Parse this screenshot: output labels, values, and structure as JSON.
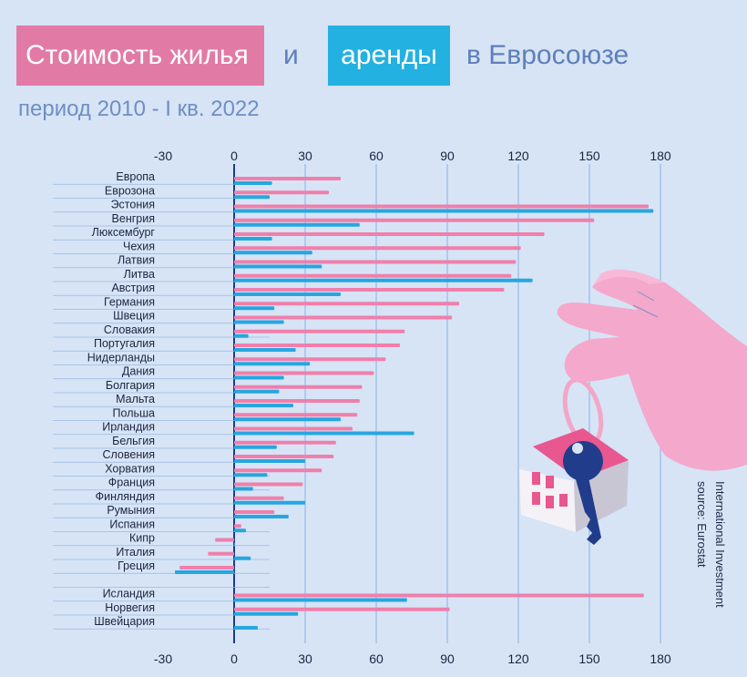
{
  "title": {
    "part1": "Стоимость жилья",
    "and": "и",
    "part2": "аренды",
    "part3": "в Евросоюзе"
  },
  "subtitle": "период 2010 - I кв. 2022",
  "source": {
    "line1": "International Investment",
    "line2": "source: Eurostat"
  },
  "colors": {
    "background": "#d6e4f6",
    "price": "#f07fab",
    "rent": "#27a6e0",
    "title_pink": "#e27aa6",
    "title_blue": "#23b1e2",
    "text_blue": "#5f7fba"
  },
  "chart_data": {
    "type": "bar",
    "orientation": "horizontal",
    "title": "Стоимость жилья и аренды в Евросоюзе",
    "xlim": [
      -30,
      180
    ],
    "xticks": [
      "-30",
      "0",
      "30",
      "60",
      "90",
      "120",
      "150",
      "180"
    ],
    "xlabel": "",
    "ylabel": "",
    "categories": [
      "Европа",
      "Еврозона",
      "Эстония",
      "Венгрия",
      "Люксембург",
      "Чехия",
      "Латвия",
      "Литва",
      "Австрия",
      "Германия",
      "Швеция",
      "Словакия",
      "Португалия",
      "Нидерланды",
      "Дания",
      "Болгария",
      "Мальта",
      "Польша",
      "Ирландия",
      "Бельгия",
      "Словения",
      "Хорватия",
      "Франция",
      "Финляндия",
      "Румыния",
      "Испания",
      "Кипр",
      "Италия",
      "Греция",
      "",
      "Исландия",
      "Норвегия",
      "Швейцария"
    ],
    "series": [
      {
        "name": "Стоимость жилья",
        "values": [
          45,
          40,
          175,
          152,
          131,
          121,
          119,
          117,
          114,
          95,
          92,
          72,
          70,
          64,
          59,
          54,
          53,
          52,
          50,
          43,
          42,
          37,
          29,
          21,
          17,
          3,
          -8,
          -11,
          -23,
          null,
          173,
          91,
          null
        ]
      },
      {
        "name": "аренды",
        "values": [
          16,
          15,
          177,
          53,
          16,
          33,
          37,
          126,
          45,
          17,
          21,
          6,
          26,
          32,
          21,
          19,
          25,
          45,
          76,
          18,
          30,
          14,
          8,
          30,
          23,
          5,
          0,
          7,
          -25,
          null,
          73,
          27,
          10
        ]
      }
    ]
  }
}
